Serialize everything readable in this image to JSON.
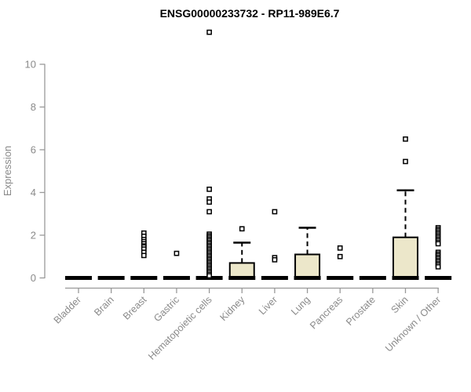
{
  "chart_data": {
    "type": "boxplot",
    "title": "ENSG00000233732 - RP11-989E6.7",
    "ylabel": "Expression",
    "xlabel": "",
    "ylim": [
      0,
      10
    ],
    "yticks": [
      0,
      2,
      4,
      6,
      8,
      10
    ],
    "grid": false,
    "legend": "none",
    "categories": [
      "Bladder",
      "Brain",
      "Breast",
      "Gastric",
      "Hematopoietic cells",
      "Kidney",
      "Liver",
      "Lung",
      "Pancreas",
      "Prostate",
      "Skin",
      "Unknown / Other"
    ],
    "boxes": [
      {
        "category": "Bladder",
        "q1": 0,
        "median": 0,
        "q3": 0,
        "whisker_low": 0,
        "whisker_high": 0,
        "outliers": []
      },
      {
        "category": "Brain",
        "q1": 0,
        "median": 0,
        "q3": 0,
        "whisker_low": 0,
        "whisker_high": 0,
        "outliers": []
      },
      {
        "category": "Breast",
        "q1": 0,
        "median": 0,
        "q3": 0,
        "whisker_low": 0,
        "whisker_high": 0,
        "outliers": [
          2.1,
          1.95,
          1.8,
          1.7,
          1.6,
          1.5,
          1.45,
          1.35,
          1.2,
          1.05
        ]
      },
      {
        "category": "Gastric",
        "q1": 0,
        "median": 0,
        "q3": 0,
        "whisker_low": 0,
        "whisker_high": 0,
        "outliers": [
          1.15
        ]
      },
      {
        "category": "Hematopoietic cells",
        "q1": 0,
        "median": 0,
        "q3": 0,
        "whisker_low": 0,
        "whisker_high": 0,
        "outliers": [
          11.5,
          4.15,
          3.7,
          3.55,
          3.1,
          2.05,
          1.97,
          1.9,
          1.82,
          1.75,
          1.67,
          1.6,
          1.52,
          1.45,
          1.37,
          1.3,
          1.22,
          1.15,
          1.07,
          1.0,
          0.92,
          0.85,
          0.77,
          0.7,
          0.62,
          0.55,
          0.47,
          0.4,
          0.32,
          0.25,
          0.17,
          0.1
        ]
      },
      {
        "category": "Kidney",
        "q1": 0,
        "median": 0,
        "q3": 0.7,
        "whisker_low": 0,
        "whisker_high": 1.65,
        "outliers": [
          2.3
        ]
      },
      {
        "category": "Liver",
        "q1": 0,
        "median": 0,
        "q3": 0,
        "whisker_low": 0,
        "whisker_high": 0,
        "outliers": [
          3.1,
          0.95,
          0.85
        ]
      },
      {
        "category": "Lung",
        "q1": 0,
        "median": 0,
        "q3": 1.1,
        "whisker_low": 0,
        "whisker_high": 2.35,
        "outliers": []
      },
      {
        "category": "Pancreas",
        "q1": 0,
        "median": 0,
        "q3": 0,
        "whisker_low": 0,
        "whisker_high": 0,
        "outliers": [
          1.4,
          1.0
        ]
      },
      {
        "category": "Prostate",
        "q1": 0,
        "median": 0,
        "q3": 0,
        "whisker_low": 0,
        "whisker_high": 0,
        "outliers": []
      },
      {
        "category": "Skin",
        "q1": 0,
        "median": 0,
        "q3": 1.9,
        "whisker_low": 0,
        "whisker_high": 4.1,
        "outliers": [
          6.5,
          5.45
        ]
      },
      {
        "category": "Unknown / Other",
        "q1": 0,
        "median": 0,
        "q3": 0,
        "whisker_low": 0,
        "whisker_high": 0,
        "outliers": [
          2.35,
          2.27,
          2.2,
          2.12,
          2.05,
          1.97,
          1.9,
          1.82,
          1.75,
          1.67,
          1.6,
          1.2,
          1.12,
          1.05,
          0.97,
          0.9,
          0.82,
          0.75,
          0.67,
          0.6,
          0.52
        ]
      }
    ],
    "colors": {
      "box_fill": "#ece7ca",
      "box_border": "#000000",
      "median": "#000000",
      "whisker": "#000000",
      "outlier_fill": "#ffffff",
      "outlier_border": "#000000",
      "axis": "#999999",
      "tick_label": "#8a8a8a",
      "title": "#000000"
    }
  }
}
